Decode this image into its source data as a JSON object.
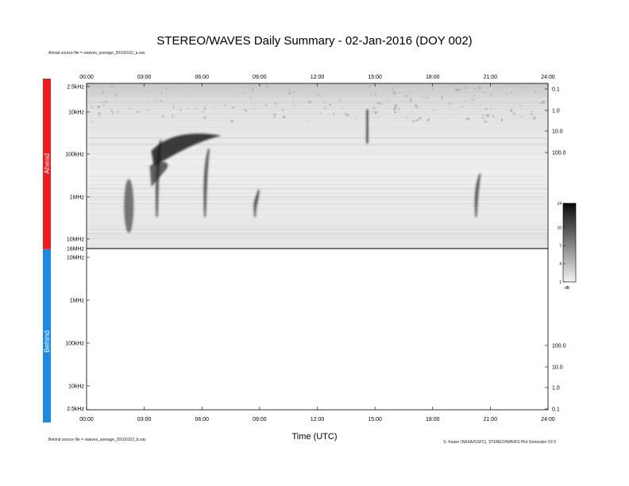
{
  "title": "STEREO/WAVES Daily Summary - 02-Jan-2016 (DOY 002)",
  "ahead_source": "Ahead source file = swaves_average_20160102_a.sav",
  "behind_source": "Behind source file = swaves_average_20160102_b.sav",
  "credits": "S. Kaiser (NASA/GSFC), STEREO/WAVES Plot Generator V2.0",
  "colors": {
    "ahead": "#ee1c1c",
    "behind": "#1e88e5",
    "spectrum_dark": "#0a0a0a",
    "spectrum_light": "#f2f2f2"
  },
  "chart_data": {
    "type": "heatmap",
    "xlabel": "Time (UTC)",
    "x_ticks": [
      "00:00",
      "03:00",
      "06:00",
      "09:00",
      "12:00",
      "15:00",
      "18:00",
      "21:00",
      "24:00"
    ],
    "panels": [
      {
        "name": "Ahead",
        "y_ticks": [
          "2.5kHz",
          "10kHz",
          "100kHz",
          "1MHz",
          "10MHz",
          "16MHz"
        ],
        "right_ticks": [
          "0.1",
          "1.0",
          "10.0",
          "100.0"
        ],
        "data_present": true,
        "events": [
          {
            "type": "burst",
            "time_hours": 2.2,
            "freq_top_khz": 400,
            "freq_bottom_mhz": 7
          },
          {
            "type": "type III",
            "time_hours": 3.7,
            "freq_top_khz": 50,
            "freq_bottom_mhz": 3
          },
          {
            "type": "type III",
            "time_hours": 6.2,
            "freq_top_khz": 80,
            "freq_bottom_mhz": 3
          },
          {
            "type": "type III",
            "time_hours": 8.8,
            "freq_top_khz": 700,
            "freq_bottom_mhz": 3
          },
          {
            "type": "spike",
            "time_hours": 14.6,
            "freq_top_khz": 10,
            "freq_bottom_khz": 60
          },
          {
            "type": "type III",
            "time_hours": 20.3,
            "freq_top_khz": 300,
            "freq_bottom_mhz": 3
          }
        ]
      },
      {
        "name": "Behind",
        "y_ticks": [
          "10MHz",
          "1MHz",
          "100kHz",
          "10kHz",
          "2.5kHz"
        ],
        "right_ticks": [
          "100.0",
          "10.0",
          "1.0",
          "0.1"
        ],
        "data_present": false
      }
    ],
    "colorbar": {
      "label": "dB",
      "ticks": [
        1,
        4,
        7,
        10,
        14
      ],
      "range": [
        1,
        14
      ]
    }
  }
}
